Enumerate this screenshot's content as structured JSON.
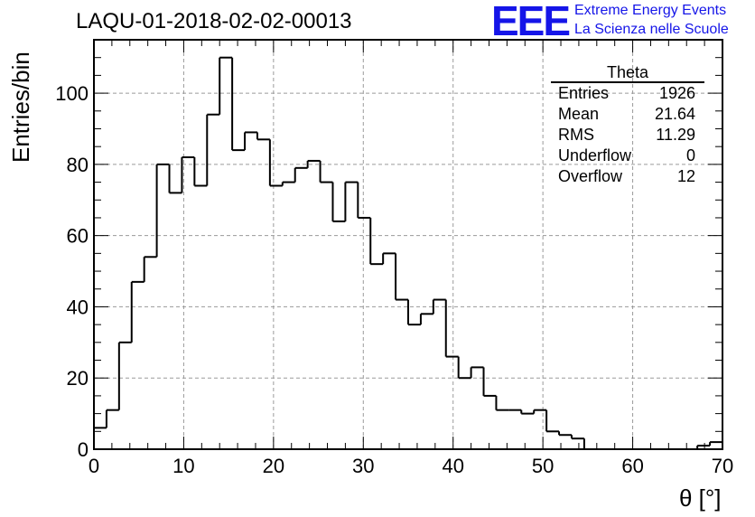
{
  "header": {
    "title": "LAQU-01-2018-02-02-00013",
    "logo_letters": "EEE",
    "logo_line1": "Extreme Energy Events",
    "logo_line2": "La Scienza nelle Scuole",
    "logo_color": "#1515e8"
  },
  "stats": {
    "title": "Theta",
    "rows": [
      {
        "label": "Entries",
        "value": "1926"
      },
      {
        "label": "Mean",
        "value": "21.64"
      },
      {
        "label": "RMS",
        "value": "11.29"
      },
      {
        "label": "Underflow",
        "value": "0"
      },
      {
        "label": "Overflow",
        "value": "12"
      }
    ]
  },
  "chart_data": {
    "type": "histogram",
    "title": "LAQU-01-2018-02-02-00013",
    "xlabel": "θ [°]",
    "ylabel": "Entries/bin",
    "xlim": [
      0,
      70
    ],
    "ylim": [
      0,
      115
    ],
    "grid": true,
    "bin_width": 1.4,
    "bin_edges_start": 0,
    "x_ticks": [
      0,
      10,
      20,
      30,
      40,
      50,
      60,
      70
    ],
    "y_ticks": [
      0,
      20,
      40,
      60,
      80,
      100
    ],
    "values": [
      6,
      11,
      30,
      47,
      54,
      80,
      72,
      82,
      74,
      94,
      110,
      84,
      89,
      87,
      74,
      75,
      79,
      81,
      75,
      64,
      75,
      65,
      52,
      55,
      42,
      35,
      38,
      42,
      26,
      20,
      23,
      15,
      11,
      11,
      10,
      11,
      5,
      4,
      3,
      0,
      0,
      0,
      0,
      0,
      0,
      0,
      0,
      0,
      1,
      2
    ],
    "line_color": "#000000",
    "grid_color": "#9a9a9a"
  }
}
